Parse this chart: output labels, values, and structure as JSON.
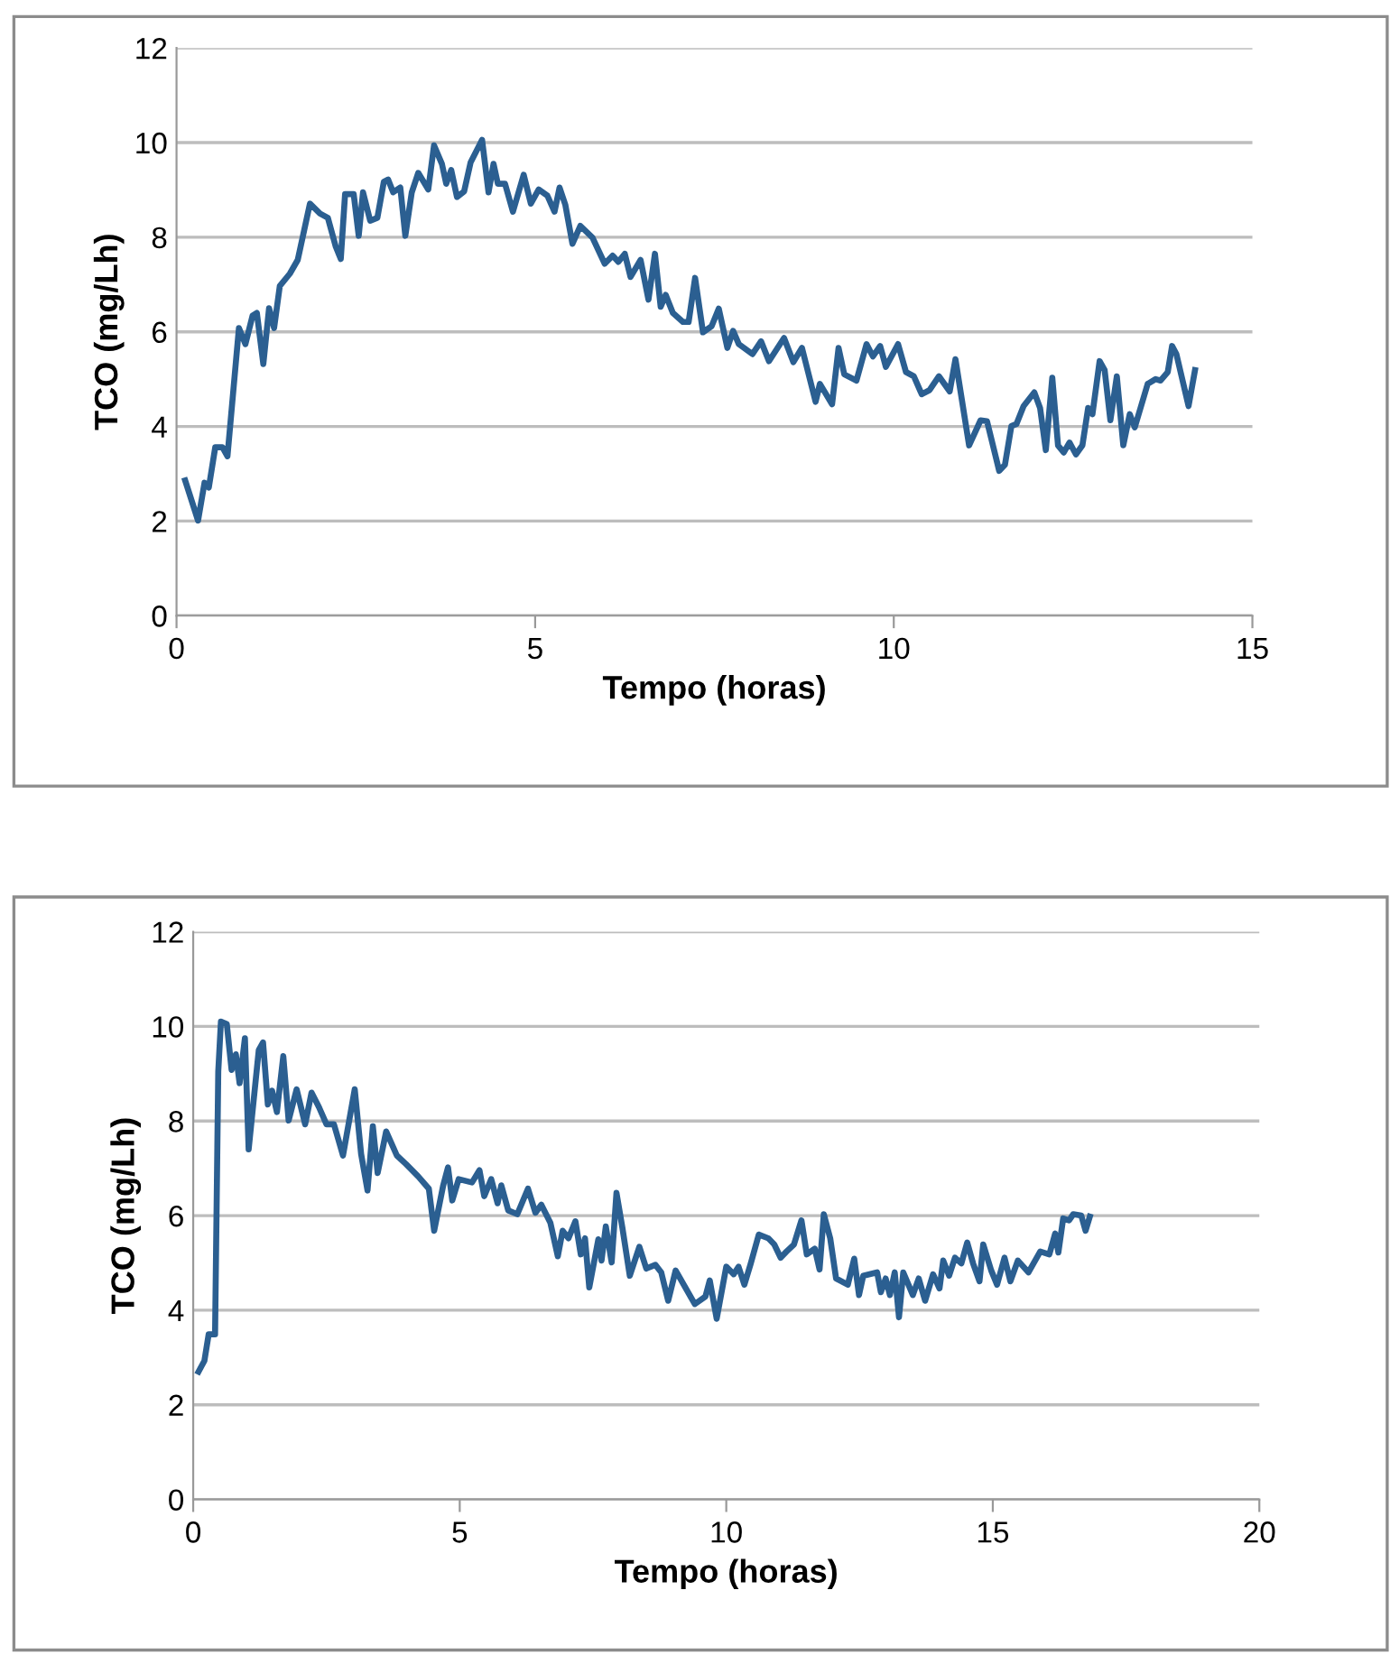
{
  "chart_data": [
    {
      "type": "line",
      "xlabel": "Tempo (horas)",
      "ylabel": "TCO (mg/Lh)",
      "xlim": [
        0,
        15
      ],
      "xticks": [
        0,
        5,
        10,
        15
      ],
      "ylim": [
        0,
        12
      ],
      "yticks": [
        0,
        2,
        4,
        6,
        8,
        10,
        12
      ],
      "grid": "y",
      "marker": "none",
      "line_style": "solid",
      "series": [
        {
          "color": "#2b5f91",
          "x": [
            0.12,
            0.3,
            0.39,
            0.45,
            0.54,
            0.64,
            0.71,
            0.87,
            0.96,
            1.06,
            1.12,
            1.21,
            1.29,
            1.36,
            1.44,
            1.58,
            1.69,
            1.86,
            2.0,
            2.11,
            2.22,
            2.29,
            2.35,
            2.47,
            2.54,
            2.6,
            2.7,
            2.8,
            2.89,
            2.95,
            3.02,
            3.12,
            3.19,
            3.28,
            3.37,
            3.51,
            3.59,
            3.7,
            3.76,
            3.83,
            3.91,
            4.01,
            4.1,
            4.26,
            4.35,
            4.42,
            4.48,
            4.58,
            4.69,
            4.84,
            4.94,
            5.05,
            5.17,
            5.27,
            5.34,
            5.42,
            5.52,
            5.63,
            5.8,
            5.97,
            6.08,
            6.16,
            6.25,
            6.33,
            6.47,
            6.58,
            6.67,
            6.75,
            6.82,
            6.92,
            7.06,
            7.14,
            7.23,
            7.34,
            7.46,
            7.56,
            7.68,
            7.76,
            7.84,
            8.03,
            8.15,
            8.26,
            8.47,
            8.6,
            8.72,
            8.91,
            8.97,
            9.14,
            9.23,
            9.31,
            9.48,
            9.62,
            9.71,
            9.81,
            9.89,
            10.06,
            10.17,
            10.28,
            10.39,
            10.5,
            10.63,
            10.78,
            10.86,
            11.05,
            11.21,
            11.3,
            11.47,
            11.55,
            11.64,
            11.71,
            11.81,
            11.96,
            12.04,
            12.12,
            12.21,
            12.29,
            12.37,
            12.45,
            12.54,
            12.63,
            12.71,
            12.77,
            12.87,
            12.94,
            13.02,
            13.11,
            13.2,
            13.29,
            13.36,
            13.54,
            13.65,
            13.72,
            13.82,
            13.88,
            13.94,
            14.11,
            14.2
          ],
          "values": [
            2.86,
            2.01,
            2.81,
            2.71,
            3.56,
            3.56,
            3.37,
            6.08,
            5.74,
            6.34,
            6.4,
            5.32,
            6.5,
            6.08,
            6.97,
            7.23,
            7.52,
            8.71,
            8.5,
            8.41,
            7.8,
            7.54,
            8.91,
            8.91,
            8.03,
            8.95,
            8.35,
            8.41,
            9.17,
            9.22,
            8.95,
            9.05,
            8.03,
            8.95,
            9.36,
            9.01,
            9.94,
            9.55,
            9.13,
            9.42,
            8.85,
            8.97,
            9.58,
            10.06,
            8.95,
            9.55,
            9.13,
            9.13,
            8.54,
            9.32,
            8.71,
            9.01,
            8.88,
            8.54,
            9.05,
            8.69,
            7.86,
            8.24,
            7.99,
            7.44,
            7.61,
            7.48,
            7.65,
            7.16,
            7.52,
            6.68,
            7.65,
            6.53,
            6.78,
            6.4,
            6.21,
            6.21,
            7.14,
            5.99,
            6.12,
            6.49,
            5.66,
            6.02,
            5.74,
            5.53,
            5.8,
            5.38,
            5.87,
            5.36,
            5.66,
            4.52,
            4.9,
            4.47,
            5.66,
            5.1,
            4.97,
            5.74,
            5.48,
            5.7,
            5.26,
            5.74,
            5.15,
            5.06,
            4.68,
            4.77,
            5.06,
            4.74,
            5.42,
            3.6,
            4.13,
            4.11,
            3.06,
            3.19,
            4.01,
            4.05,
            4.43,
            4.72,
            4.39,
            3.5,
            5.03,
            3.6,
            3.45,
            3.66,
            3.41,
            3.6,
            4.39,
            4.26,
            5.38,
            5.19,
            4.13,
            5.06,
            3.6,
            4.26,
            3.98,
            4.9,
            5.0,
            4.97,
            5.15,
            5.7,
            5.53,
            4.43,
            5.19
          ]
        }
      ]
    },
    {
      "type": "line",
      "xlabel": "Tempo (horas)",
      "ylabel": "TCO (mg/Lh)",
      "xlim": [
        0,
        20
      ],
      "xticks": [
        0,
        5,
        10,
        15,
        20
      ],
      "ylim": [
        0,
        12
      ],
      "yticks": [
        0,
        2,
        4,
        6,
        8,
        10,
        12
      ],
      "grid": "y",
      "marker": "none",
      "line_style": "solid",
      "series": [
        {
          "color": "#2b5f91",
          "x": [
            0.1,
            0.21,
            0.29,
            0.41,
            0.47,
            0.52,
            0.63,
            0.72,
            0.8,
            0.87,
            0.97,
            1.04,
            1.23,
            1.31,
            1.4,
            1.48,
            1.57,
            1.69,
            1.79,
            1.94,
            2.1,
            2.22,
            2.36,
            2.5,
            2.64,
            2.81,
            3.03,
            3.15,
            3.27,
            3.37,
            3.46,
            3.62,
            3.82,
            3.99,
            4.22,
            4.42,
            4.52,
            4.69,
            4.78,
            4.86,
            4.98,
            5.23,
            5.37,
            5.46,
            5.59,
            5.71,
            5.78,
            5.91,
            6.08,
            6.28,
            6.42,
            6.53,
            6.7,
            6.84,
            6.93,
            7.04,
            7.17,
            7.27,
            7.35,
            7.43,
            7.6,
            7.66,
            7.74,
            7.85,
            7.94,
            8.05,
            8.19,
            8.37,
            8.5,
            8.67,
            8.78,
            8.91,
            9.05,
            9.41,
            9.61,
            9.69,
            9.82,
            10.0,
            10.14,
            10.23,
            10.34,
            10.46,
            10.61,
            10.79,
            10.9,
            11.02,
            11.13,
            11.27,
            11.41,
            11.51,
            11.66,
            11.75,
            11.83,
            11.95,
            12.06,
            12.28,
            12.4,
            12.49,
            12.57,
            12.83,
            12.9,
            12.99,
            13.07,
            13.16,
            13.24,
            13.32,
            13.5,
            13.61,
            13.73,
            13.88,
            14.0,
            14.07,
            14.18,
            14.29,
            14.41,
            14.52,
            14.63,
            14.75,
            14.82,
            14.97,
            15.08,
            15.22,
            15.33,
            15.47,
            15.67,
            15.89,
            16.06,
            16.17,
            16.23,
            16.32,
            16.43,
            16.51,
            16.66,
            16.74,
            16.82
          ],
          "values": [
            2.7,
            2.93,
            3.49,
            3.49,
            9.05,
            10.1,
            10.05,
            9.08,
            9.41,
            8.8,
            9.75,
            7.4,
            9.5,
            9.66,
            8.35,
            8.64,
            8.19,
            9.37,
            8.01,
            8.67,
            7.93,
            8.6,
            8.29,
            7.93,
            7.93,
            7.27,
            8.67,
            7.3,
            6.53,
            7.89,
            6.9,
            7.78,
            7.27,
            7.09,
            6.83,
            6.57,
            5.68,
            6.64,
            7.02,
            6.32,
            6.77,
            6.7,
            6.96,
            6.41,
            6.77,
            6.26,
            6.64,
            6.11,
            6.03,
            6.57,
            6.06,
            6.23,
            5.85,
            5.14,
            5.68,
            5.52,
            5.88,
            5.18,
            5.52,
            4.48,
            5.5,
            5.05,
            5.77,
            5.01,
            6.48,
            5.75,
            4.73,
            5.34,
            4.88,
            4.96,
            4.8,
            4.2,
            4.84,
            4.13,
            4.29,
            4.63,
            3.82,
            4.92,
            4.76,
            4.92,
            4.54,
            4.99,
            5.6,
            5.52,
            5.39,
            5.11,
            5.24,
            5.39,
            5.9,
            5.18,
            5.3,
            4.86,
            6.03,
            5.52,
            4.67,
            4.54,
            5.09,
            4.32,
            4.73,
            4.8,
            4.38,
            4.67,
            4.32,
            4.8,
            3.85,
            4.8,
            4.32,
            4.67,
            4.2,
            4.76,
            4.46,
            5.05,
            4.73,
            5.11,
            4.99,
            5.43,
            4.99,
            4.61,
            5.39,
            4.84,
            4.54,
            5.11,
            4.61,
            5.05,
            4.8,
            5.24,
            5.18,
            5.62,
            5.22,
            5.94,
            5.9,
            6.03,
            6.0,
            5.68,
            5.98
          ]
        }
      ]
    }
  ]
}
